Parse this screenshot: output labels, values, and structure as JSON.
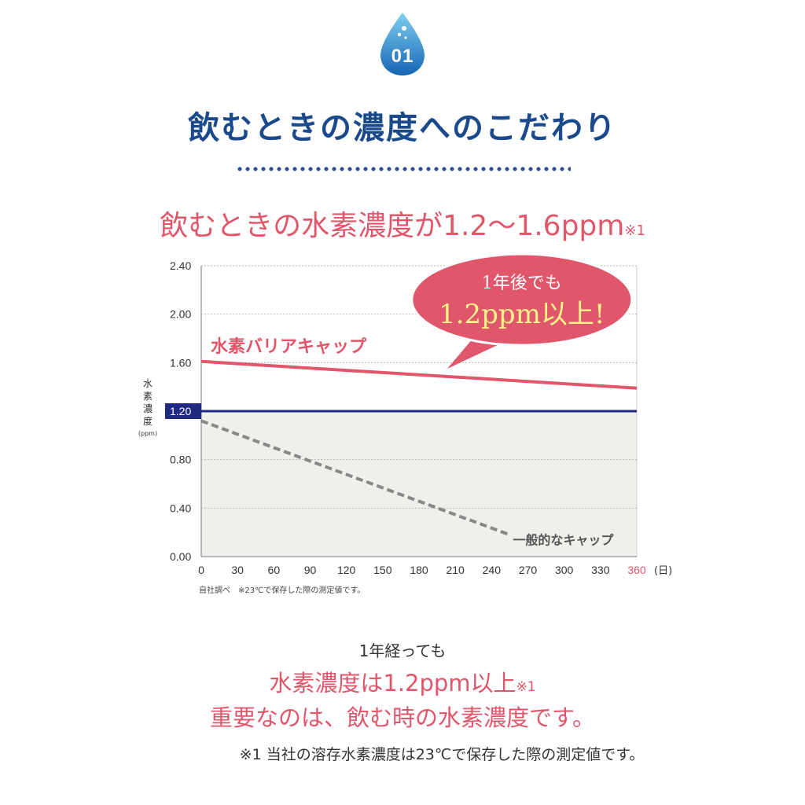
{
  "header": {
    "badge_number": "01",
    "title": "飲むときの濃度へのこだわり",
    "subtitle": "飲むときの水素濃度が1.2〜1.6ppm",
    "subtitle_note": "※1"
  },
  "chart_data": {
    "type": "line",
    "x_ticks": [
      "0",
      "30",
      "60",
      "90",
      "120",
      "150",
      "180",
      "210",
      "240",
      "270",
      "300",
      "330",
      "360"
    ],
    "x_unit": "(日)",
    "y_ticks": [
      "2.40",
      "2.00",
      "1.60",
      "1.20",
      "0.80",
      "0.40",
      "0.00"
    ],
    "ylabel": "水素濃度",
    "ylabel_unit": "(ppm)",
    "xlim": [
      0,
      360
    ],
    "ylim": [
      0,
      2.4
    ],
    "grid": true,
    "threshold": {
      "value": 1.2,
      "label": "1.20",
      "color": "#1f2a80"
    },
    "series": [
      {
        "name": "水素バリアキャップ",
        "x": [
          0,
          360
        ],
        "y": [
          1.61,
          1.39
        ],
        "color": "#e0566b",
        "style": "solid"
      },
      {
        "name": "一般的なキャップ",
        "x": [
          0,
          255
        ],
        "y": [
          1.12,
          0.18
        ],
        "color": "#888888",
        "style": "dashed"
      }
    ],
    "callout": {
      "line1": "1年後でも",
      "line2": "1.2ppm以上!",
      "color": "#e0566b"
    }
  },
  "source_note": "自社調べ　※23℃で保存した際の測定値です。",
  "body": {
    "line1": "1年経っても",
    "line2": "水素濃度は1.2ppm以上",
    "line2_note": "※1",
    "line3": "重要なのは、飲む時の水素濃度です。"
  },
  "footnote": "※1 当社の溶存水素濃度は23℃で保存した際の測定値です。"
}
